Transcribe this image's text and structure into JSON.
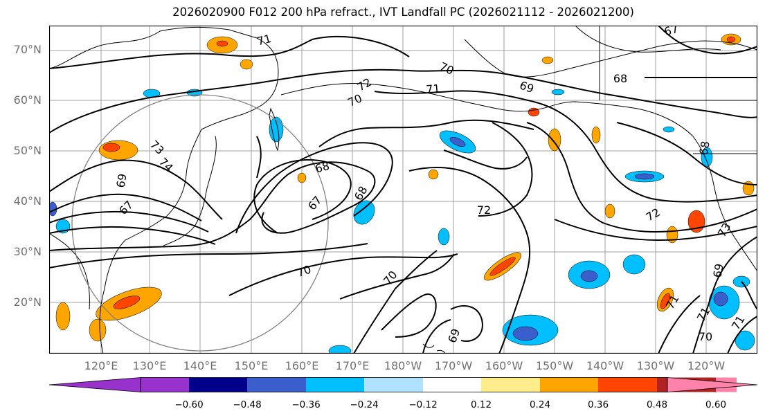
{
  "title": "2026020900 F012 200 hPa refract., IVT Landfall PC (2026021112 - 2026021200)",
  "lat_labels": [
    "70°N",
    "60°N",
    "50°N",
    "40°N",
    "30°N",
    "20°N"
  ],
  "lon_labels": [
    "120°E",
    "130°E",
    "140°E",
    "150°E",
    "160°E",
    "170°E",
    "180°W",
    "170°W",
    "160°W",
    "150°W",
    "140°W",
    "130°W",
    "120°W"
  ],
  "contour_labels": [
    "71",
    "70",
    "72",
    "71",
    "69",
    "68",
    "70",
    "67",
    "73",
    "74",
    "68",
    "67",
    "69",
    "72",
    "70",
    "69",
    "70",
    "72",
    "73",
    "69",
    "71",
    "71",
    "70",
    "71",
    "68",
    "67",
    "68"
  ],
  "colorbar": {
    "ticks": [
      "−0.60",
      "−0.48",
      "−0.36",
      "−0.24",
      "−0.12",
      "0.12",
      "0.24",
      "0.36",
      "0.48",
      "0.60"
    ],
    "colors": [
      "#9932cc",
      "#00008b",
      "#3a5fcd",
      "#00bfff",
      "#b0e2ff",
      "#ffffff",
      "#ffec8b",
      "#ffa500",
      "#ff4500",
      "#b22222",
      "#ff82ab",
      "#ff82ab"
    ],
    "extend_low_color": "#9932cc",
    "extend_high_color": "#ff82ab"
  },
  "map_colors": {
    "grid": "#a0a0a0",
    "circle": "#808080",
    "contour": "#000000",
    "coast": "#000000"
  }
}
